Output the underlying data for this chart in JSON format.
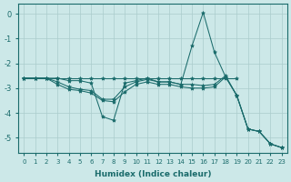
{
  "xlabel": "Humidex (Indice chaleur)",
  "background_color": "#cce8e8",
  "grid_color": "#aacccc",
  "line_color": "#1a6b6b",
  "xlim": [
    -0.5,
    23.5
  ],
  "ylim": [
    -5.6,
    0.4
  ],
  "yticks": [
    0,
    -1,
    -2,
    -3,
    -4,
    -5
  ],
  "xticks": [
    0,
    1,
    2,
    3,
    4,
    5,
    6,
    7,
    8,
    9,
    10,
    11,
    12,
    13,
    14,
    15,
    16,
    17,
    18,
    19,
    20,
    21,
    22,
    23
  ],
  "line1_x": [
    0,
    1,
    2,
    3,
    4,
    5,
    6,
    7,
    8,
    9,
    10,
    11,
    12,
    13,
    14,
    15,
    16,
    17,
    18,
    19
  ],
  "line1_y": [
    -2.6,
    -2.6,
    -2.6,
    -2.6,
    -2.6,
    -2.6,
    -2.6,
    -2.6,
    -2.6,
    -2.6,
    -2.6,
    -2.6,
    -2.6,
    -2.6,
    -2.6,
    -2.6,
    -2.6,
    -2.6,
    -2.6,
    -2.6
  ],
  "line2_x": [
    0,
    1,
    2,
    3,
    4,
    5,
    6,
    7,
    8,
    9,
    10,
    11,
    12,
    13,
    14,
    15,
    16,
    17,
    18,
    19,
    20,
    21,
    22,
    23
  ],
  "line2_y": [
    -2.6,
    -2.6,
    -2.6,
    -2.85,
    -3.05,
    -3.1,
    -3.2,
    -3.5,
    -3.55,
    -3.15,
    -2.85,
    -2.75,
    -2.85,
    -2.85,
    -2.95,
    -3.0,
    -3.0,
    -2.95,
    -2.55,
    -3.3,
    -4.65,
    -4.75,
    -5.25,
    -5.4
  ],
  "line3_x": [
    0,
    1,
    2,
    3,
    4,
    5,
    6,
    7,
    8,
    9,
    10,
    11,
    12,
    13,
    14,
    15,
    16,
    17,
    18,
    19,
    20,
    21,
    22,
    23
  ],
  "line3_y": [
    -2.6,
    -2.6,
    -2.6,
    -2.75,
    -2.95,
    -3.05,
    -3.1,
    -3.45,
    -3.45,
    -2.95,
    -2.75,
    -2.65,
    -2.75,
    -2.75,
    -2.85,
    -1.3,
    0.05,
    -1.55,
    -2.55,
    -3.3,
    -4.65,
    -4.75,
    -5.25,
    -5.4
  ],
  "line4_x": [
    0,
    1,
    2,
    3,
    4,
    5,
    6,
    7,
    8,
    9,
    10,
    11,
    12,
    13,
    14,
    15,
    16,
    17,
    18,
    19,
    20,
    21,
    22,
    23
  ],
  "line4_y": [
    -2.6,
    -2.6,
    -2.6,
    -2.6,
    -2.7,
    -2.7,
    -2.8,
    -4.15,
    -4.3,
    -2.8,
    -2.7,
    -2.6,
    -2.75,
    -2.75,
    -2.85,
    -2.85,
    -2.9,
    -2.85,
    -2.5,
    -3.3,
    -4.65,
    -4.75,
    -5.25,
    -5.4
  ]
}
